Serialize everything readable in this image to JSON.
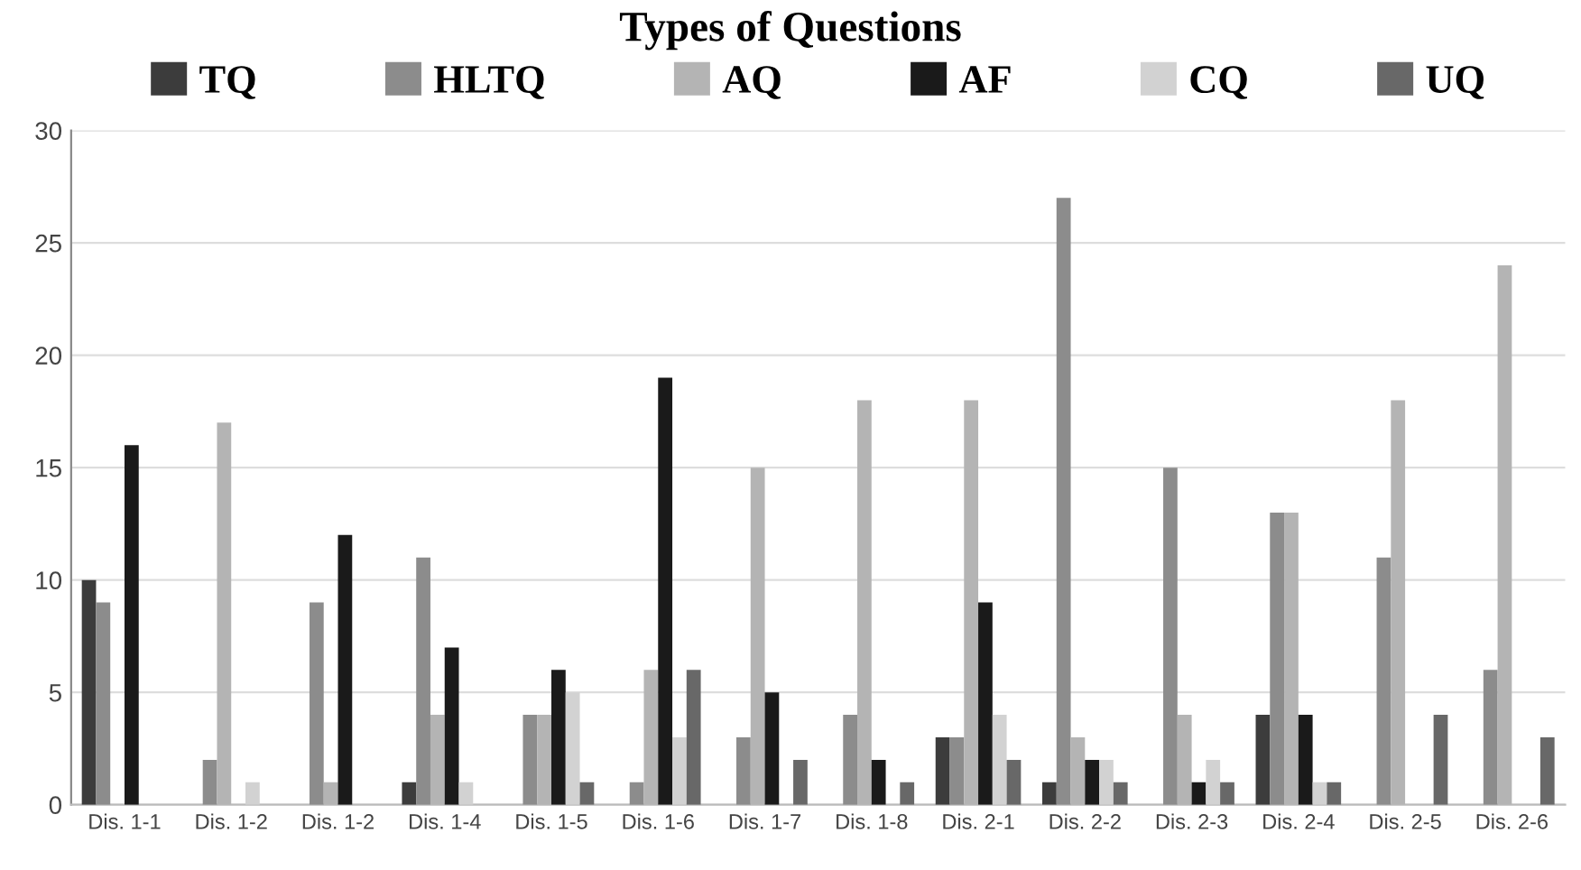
{
  "chart_data": {
    "type": "bar",
    "title": "Types of Questions",
    "categories": [
      "Dis. 1-1",
      "Dis. 1-2",
      "Dis. 1-2",
      "Dis. 1-4",
      "Dis. 1-5",
      "Dis. 1-6",
      "Dis. 1-7",
      "Dis. 1-8",
      "Dis. 2-1",
      "Dis. 2-2",
      "Dis. 2-3",
      "Dis. 2-4",
      "Dis. 2-5",
      "Dis. 2-6"
    ],
    "series": [
      {
        "name": "TQ",
        "color": "#3c3c3c",
        "values": [
          10,
          0,
          0,
          1,
          0,
          0,
          0,
          0,
          3,
          1,
          0,
          4,
          0,
          0
        ]
      },
      {
        "name": "HLTQ",
        "color": "#8c8c8c",
        "values": [
          9,
          2,
          9,
          11,
          4,
          1,
          3,
          4,
          3,
          27,
          15,
          13,
          11,
          6
        ]
      },
      {
        "name": "AQ",
        "color": "#b4b4b4",
        "values": [
          0,
          17,
          1,
          4,
          4,
          6,
          15,
          18,
          18,
          3,
          4,
          13,
          18,
          24
        ]
      },
      {
        "name": "AF",
        "color": "#1a1a1a",
        "values": [
          16,
          0,
          12,
          7,
          6,
          19,
          5,
          2,
          9,
          2,
          1,
          4,
          0,
          0
        ]
      },
      {
        "name": "CQ",
        "color": "#d2d2d2",
        "values": [
          0,
          1,
          0,
          1,
          5,
          3,
          0,
          0,
          4,
          2,
          2,
          1,
          0,
          0
        ]
      },
      {
        "name": "UQ",
        "color": "#686868",
        "values": [
          0,
          0,
          0,
          0,
          1,
          6,
          2,
          1,
          2,
          1,
          1,
          1,
          4,
          3
        ]
      }
    ],
    "ylim": [
      0,
      30
    ],
    "yticks": [
      0,
      5,
      10,
      15,
      20,
      25,
      30
    ],
    "grid": "y",
    "legend": "top"
  }
}
